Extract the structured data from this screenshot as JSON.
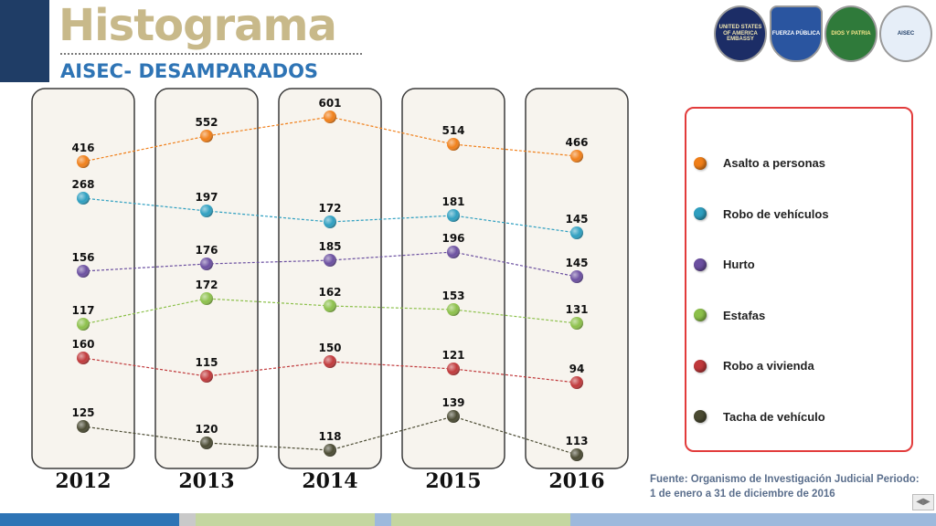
{
  "header": {
    "title": "Histograma",
    "subtitle": "AISEC- DESAMPARADOS"
  },
  "logos": [
    {
      "name": "us-embassy-seal",
      "text": "UNITED STATES OF AMERICA EMBASSY"
    },
    {
      "name": "fuerza-publica-badge",
      "text": "FUERZA PÚBLICA"
    },
    {
      "name": "police-crest",
      "text": "DIOS Y PATRIA"
    },
    {
      "name": "aisec-logo",
      "text": "AISEC"
    }
  ],
  "chart_data": {
    "type": "line",
    "x": [
      "2012",
      "2013",
      "2014",
      "2015",
      "2016"
    ],
    "series": [
      {
        "name": "Asalto a personas",
        "color": "#f07f19",
        "values": [
          416,
          552,
          601,
          514,
          466
        ]
      },
      {
        "name": "Robo de vehículos",
        "color": "#2e9fc0",
        "values": [
          268,
          197,
          172,
          181,
          145
        ]
      },
      {
        "name": "Hurto",
        "color": "#6b4fa0",
        "values": [
          156,
          176,
          185,
          196,
          145
        ]
      },
      {
        "name": "Estafas",
        "color": "#8cc04a",
        "values": [
          117,
          172,
          162,
          153,
          131
        ]
      },
      {
        "name": "Robo a vivienda",
        "color": "#c0393b",
        "values": [
          160,
          115,
          150,
          121,
          94
        ]
      },
      {
        "name": "Tacha de vehículo",
        "color": "#4a4a32",
        "values": [
          125,
          120,
          118,
          139,
          113
        ]
      }
    ],
    "legend_position": "right",
    "grid": false
  },
  "source": {
    "line1": "Fuente: Organismo de Investigación Judicial Periodo:",
    "line2": "1 de enero a 31 de diciembre de 2016"
  },
  "bottom_bar_colors": [
    "#2e74b5",
    "#c4d6a0",
    "#9db9dc",
    "#c4d6a0",
    "#9db9dc",
    "#2e74b5"
  ]
}
